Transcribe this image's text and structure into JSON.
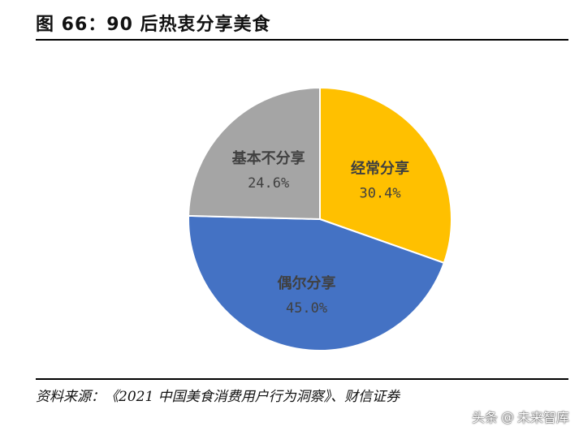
{
  "figure": {
    "title": "图 66：90 后热衷分享美食",
    "source": "资料来源：《2021 中国美食消费用户行为洞察》、财信证券"
  },
  "watermark": {
    "prefix": "头条",
    "at_symbol": "@",
    "account": "未来智库"
  },
  "chart_data": {
    "type": "pie",
    "title": "",
    "legend": "none",
    "start_angle_deg": 0,
    "direction": "clockwise",
    "slices": [
      {
        "label": "经常分享",
        "value": 30.4,
        "value_text": "30.4%",
        "color": "#FFC000"
      },
      {
        "label": "偶尔分享",
        "value": 45.0,
        "value_text": "45.0%",
        "color": "#4472C4"
      },
      {
        "label": "基本不分享",
        "value": 24.6,
        "value_text": "24.6%",
        "color": "#A5A5A5"
      }
    ]
  }
}
